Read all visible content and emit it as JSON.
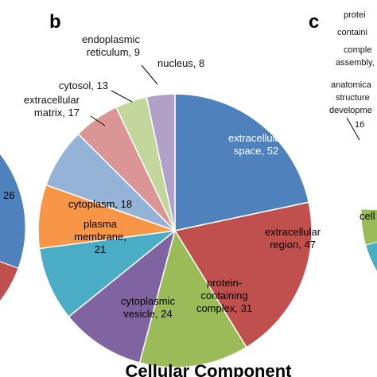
{
  "panels": {
    "b": "b",
    "c": "c"
  },
  "left_fragment": {
    "visible_value": "26",
    "slice_colors": [
      "#4f81bd",
      "#c0504d",
      "#9bbb59"
    ]
  },
  "right_fragment": {
    "labels": [
      "protei",
      "containi",
      "comple",
      "assembly,",
      "anatomica",
      "structure",
      "developme",
      "16",
      "cell"
    ],
    "slice_colors": [
      "#4f81bd",
      "#c0504d",
      "#f79646",
      "#4bacc6",
      "#9bbb59"
    ]
  },
  "chart_data": {
    "type": "pie",
    "title": "Cellular Component",
    "start_angle_deg": 0,
    "direction": "clockwise",
    "slices": [
      {
        "label": "extracellular space, 52",
        "lines": [
          "extracellular",
          "space, 52"
        ],
        "value": 52,
        "color": "#4f81bd",
        "label_inside": true,
        "text_color": "#ffffff"
      },
      {
        "label": "extracellular region, 47",
        "lines": [
          "extracellular",
          "region, 47"
        ],
        "value": 47,
        "color": "#c0504d",
        "label_inside": true,
        "text_color": "#000000"
      },
      {
        "label": "protein-containing complex, 31",
        "lines": [
          "protein-",
          "containing",
          "complex, 31"
        ],
        "value": 31,
        "color": "#9bbb59",
        "label_inside": true,
        "text_color": "#000000"
      },
      {
        "label": "cytoplasmic vesicle, 24",
        "lines": [
          "cytoplasmic",
          "vesicle, 24"
        ],
        "value": 24,
        "color": "#8064a2",
        "label_inside": true,
        "text_color": "#000000"
      },
      {
        "label": "plasma membrane, 21",
        "lines": [
          "plasma",
          "membrane,",
          "21"
        ],
        "value": 21,
        "color": "#4bacc6",
        "label_inside": true,
        "text_color": "#000000"
      },
      {
        "label": "cytoplasm, 18",
        "lines": [
          "cytoplasm, 18"
        ],
        "value": 18,
        "color": "#f79646",
        "label_inside": true,
        "text_color": "#000000"
      },
      {
        "label": "extracellular matrix, 17",
        "lines": [
          "extracellular",
          "matrix, 17"
        ],
        "value": 17,
        "color": "#95b3d7",
        "label_inside": false,
        "text_color": "#000000"
      },
      {
        "label": "cytosol, 13",
        "lines": [
          "cytosol, 13"
        ],
        "value": 13,
        "color": "#da9694",
        "label_inside": false,
        "text_color": "#000000"
      },
      {
        "label": "endoplasmic reticulum, 9",
        "lines": [
          "endoplasmic",
          "reticulum, 9"
        ],
        "value": 9,
        "color": "#c3d69b",
        "label_inside": false,
        "text_color": "#000000"
      },
      {
        "label": "nucleus, 8",
        "lines": [
          "nucleus, 8"
        ],
        "value": 8,
        "color": "#b1a0c7",
        "label_inside": false,
        "text_color": "#000000"
      }
    ]
  }
}
